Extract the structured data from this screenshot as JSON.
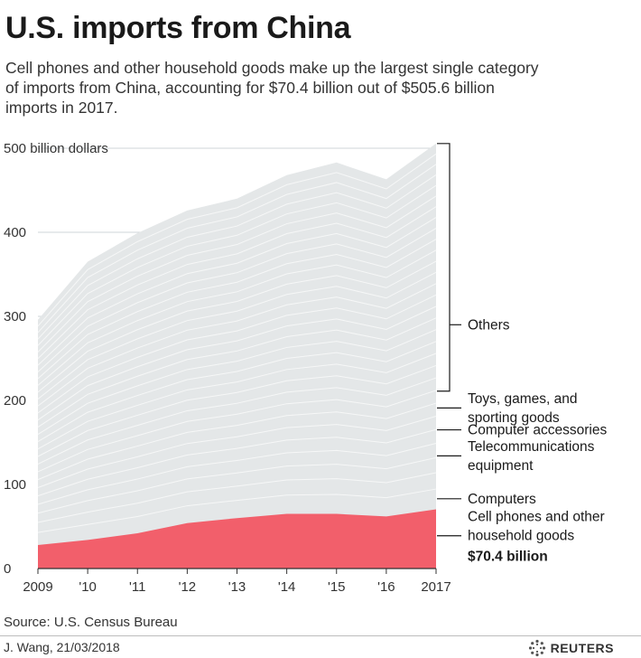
{
  "title": "U.S. imports from China",
  "subtitle_lines": [
    "Cell phones and other household goods make up the largest single category",
    "of imports from China, accounting for $70.4 billion out of  $505.6 billion",
    "imports in 2017."
  ],
  "source": "Source: U.S. Census Bureau",
  "credit": "J. Wang,  21/03/2018",
  "brand": "REUTERS",
  "colors": {
    "highlight": "#f25f6b",
    "others": "#e4e7e8",
    "grid": "#cfd5d8",
    "layer_line": "#f6f7f7"
  },
  "chart_data": {
    "type": "area",
    "categories": [
      "2009",
      "'10",
      "'11",
      "'12",
      "'13",
      "'14",
      "'15",
      "'16",
      "2017"
    ],
    "ylim": [
      0,
      500
    ],
    "ylabel": "billion dollars",
    "y_ticks": [
      {
        "value": 0,
        "label": "0"
      },
      {
        "value": 100,
        "label": "100"
      },
      {
        "value": 200,
        "label": "200"
      },
      {
        "value": 300,
        "label": "300"
      },
      {
        "value": 400,
        "label": "400"
      },
      {
        "value": 500,
        "label": "500 billion dollars"
      }
    ],
    "grid": true,
    "total": [
      296,
      365,
      399,
      426,
      440,
      468,
      483,
      463,
      505.6
    ],
    "highlight_series": {
      "name": "Cell phones and other household goods",
      "values": [
        28,
        34,
        42,
        54,
        60,
        65,
        65,
        62,
        70.4
      ]
    },
    "annotation_value": "$70.4 billion",
    "legend_labels": [
      {
        "text": [
          "Others"
        ],
        "value": 290,
        "bracket": [
          211,
          505.6
        ]
      },
      {
        "text": [
          "Toys, games, and",
          "sporting goods"
        ],
        "value": 191
      },
      {
        "text": [
          "Computer accessories"
        ],
        "value": 165
      },
      {
        "text": [
          "Telecommunications",
          "equipment"
        ],
        "value": 134
      },
      {
        "text": [
          "Computers"
        ],
        "value": 83
      },
      {
        "text": [
          "Cell phones and other",
          "household goods"
        ],
        "value": 39,
        "bold_line": "$70.4 billion"
      }
    ]
  }
}
